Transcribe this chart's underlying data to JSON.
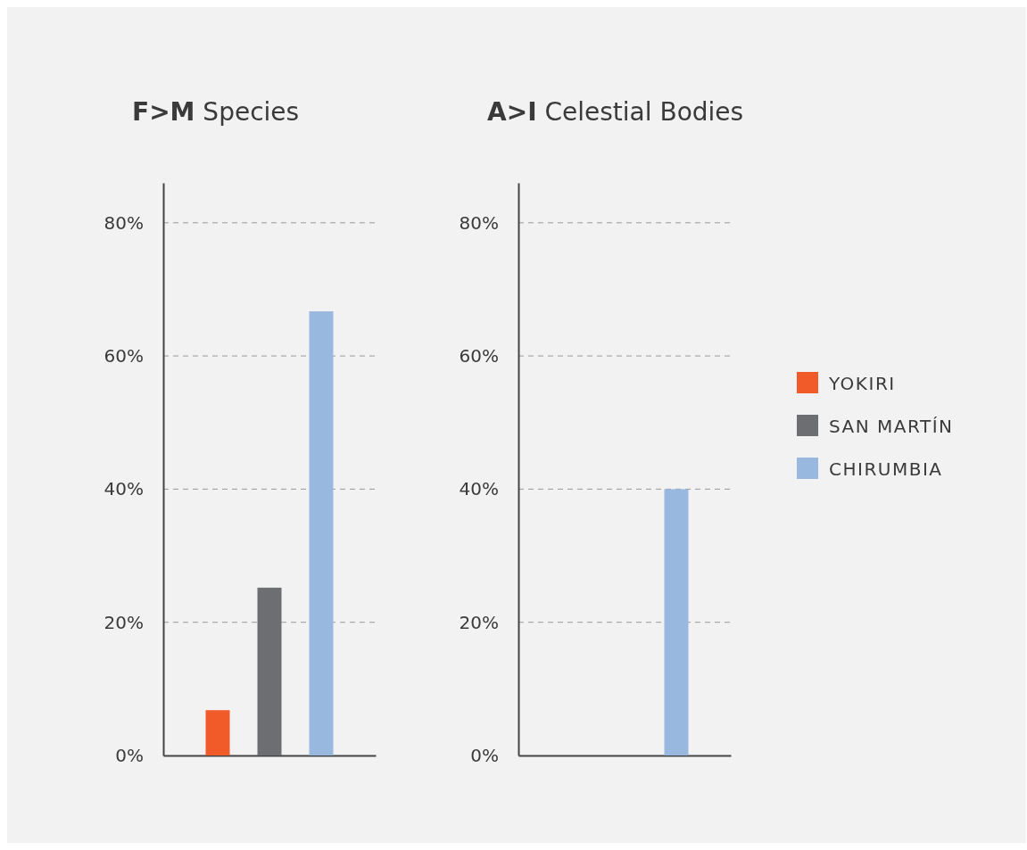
{
  "chart_data": [
    {
      "type": "bar",
      "title": "F>M Species",
      "categories": [
        null
      ],
      "ylim": [
        0,
        86
      ],
      "yticks": [
        {
          "value": 0,
          "label": "0%"
        },
        {
          "value": 20,
          "label": "20%"
        },
        {
          "value": 40,
          "label": "40%"
        },
        {
          "value": 60,
          "label": "60%"
        },
        {
          "value": 80,
          "label": "80%"
        }
      ],
      "grid": "y",
      "series": [
        {
          "color": "#f15a29",
          "values": [
            6.8
          ]
        },
        {
          "color": "#6d6e71",
          "values": [
            25.2
          ]
        },
        {
          "color": "#99b8e0",
          "values": [
            66.7
          ]
        }
      ]
    },
    {
      "type": "bar",
      "title": "A>I Celestial Bodies",
      "categories": [
        null
      ],
      "ylim": [
        0,
        86
      ],
      "yticks": [
        {
          "value": 0,
          "label": "0%"
        },
        {
          "value": 20,
          "label": "20%"
        },
        {
          "value": 40,
          "label": "40%"
        },
        {
          "value": 60,
          "label": "60%"
        },
        {
          "value": 80,
          "label": "80%"
        }
      ],
      "grid": "y",
      "legend": "right",
      "series": [
        {
          "name": "YOKIRI",
          "color": "#f15a29",
          "values": [
            0
          ]
        },
        {
          "name": "SAN MARTÍN",
          "color": "#6d6e71",
          "values": [
            0
          ]
        },
        {
          "name": "CHIRUMBIA",
          "color": "#99b8e0",
          "values": [
            40
          ]
        }
      ]
    }
  ]
}
